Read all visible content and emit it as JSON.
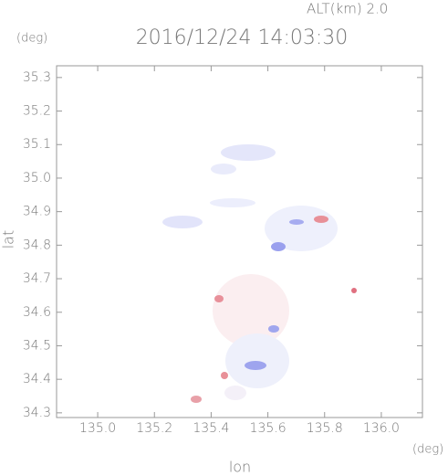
{
  "chart_data": {
    "type": "map",
    "title": "2016/12/24 14:03:30",
    "altitude_label": "ALT(km)  2.0",
    "y_unit": "(deg)",
    "x_unit": "(deg)",
    "xlabel": "lon",
    "ylabel": "lat",
    "xlim": [
      134.855,
      136.145
    ],
    "ylim": [
      34.286,
      35.335
    ],
    "xticks": [
      {
        "value": 135.0,
        "label": "135.0"
      },
      135.2,
      135.4,
      135.6,
      135.8,
      {
        "value": 136.0,
        "label": "136.0"
      }
    ],
    "yticks": [
      34.3,
      34.4,
      34.5,
      34.6,
      34.7,
      34.8,
      34.9,
      {
        "value": 35.0,
        "label": "35.0"
      },
      35.1,
      35.2,
      35.3
    ]
  }
}
